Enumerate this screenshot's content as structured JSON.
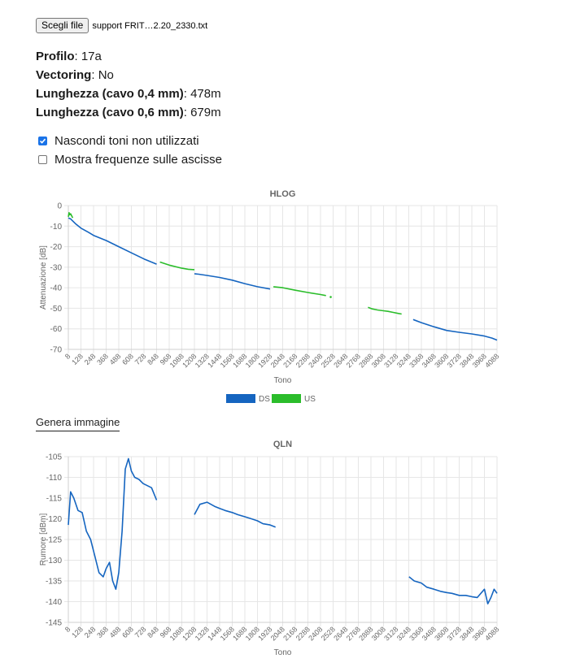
{
  "file_input": {
    "button_label": "Scegli file",
    "file_name": "support FRIT…2.20_2330.txt"
  },
  "info": [
    {
      "label": "Profilo",
      "value": "17a"
    },
    {
      "label": "Vectoring",
      "value": "No"
    },
    {
      "label": "Lunghezza (cavo 0,4 mm)",
      "value": "478m"
    },
    {
      "label": "Lunghezza (cavo 0,6 mm)",
      "value": "679m"
    }
  ],
  "options": [
    {
      "label": "Nascondi toni non utilizzati",
      "checked": true
    },
    {
      "label": "Mostra frequenze sulle ascisse",
      "checked": false
    }
  ],
  "generate_image_label": "Genera immagine",
  "colors": {
    "ds": "#1565c0",
    "us": "#2bbd2b",
    "grid": "#e6e6e6"
  },
  "chart_data": [
    {
      "type": "line",
      "title": "HLOG",
      "xlabel": "Tono",
      "ylabel": "Attenuazione [dB]",
      "ylim": [
        -70,
        0
      ],
      "yticks": [
        0,
        -10,
        -20,
        -30,
        -40,
        -50,
        -60,
        -70
      ],
      "categories": [
        "8",
        "128",
        "248",
        "368",
        "488",
        "608",
        "728",
        "848",
        "968",
        "1088",
        "1208",
        "1328",
        "1448",
        "1568",
        "1688",
        "1808",
        "1928",
        "2048",
        "2168",
        "2288",
        "2408",
        "2528",
        "2648",
        "2768",
        "2888",
        "3008",
        "3128",
        "3248",
        "3368",
        "3488",
        "3608",
        "3728",
        "3848",
        "3968",
        "4088"
      ],
      "legend": {
        "placement": "bottom",
        "entries": [
          "DS",
          "US"
        ]
      },
      "series": [
        {
          "name": "DS",
          "segments": [
            {
              "x": [
                8,
                30,
                80,
                128,
                200,
                248,
                368,
                488,
                608,
                728,
                848
              ],
              "y": [
                -6,
                -6.5,
                -9,
                -11,
                -13,
                -14.5,
                -17,
                -20,
                -23,
                -26,
                -28.5
              ]
            },
            {
              "x": [
                1208,
                1250,
                1328,
                1448,
                1568,
                1688,
                1808,
                1928
              ],
              "y": [
                -33.2,
                -33.4,
                -34,
                -35,
                -36.3,
                -38,
                -39.5,
                -40.6
              ]
            },
            {
              "x": [
                3290,
                3368,
                3488,
                3608,
                3728,
                3848,
                3968,
                4040,
                4088
              ],
              "y": [
                -55.5,
                -57,
                -59,
                -60.8,
                -61.7,
                -62.5,
                -63.5,
                -64.5,
                -65.5
              ]
            }
          ]
        },
        {
          "name": "US",
          "segments": [
            {
              "x": [
                8,
                15,
                22,
                30,
                40,
                50
              ],
              "y": [
                -5.5,
                -3.5,
                -4.5,
                -4,
                -5,
                -6
              ]
            },
            {
              "x": [
                880,
                968,
                1088,
                1150,
                1208
              ],
              "y": [
                -27.5,
                -29,
                -30.5,
                -31,
                -31.2
              ]
            },
            {
              "x": [
                1960,
                2048,
                2168,
                2288,
                2408,
                2460
              ],
              "y": [
                -39.5,
                -40,
                -41.2,
                -42.3,
                -43.3,
                -43.8
              ]
            },
            {
              "x": [
                2505
              ],
              "y": [
                -44.5
              ]
            },
            {
              "x": [
                2860,
                2900,
                2950,
                3008,
                3050,
                3100,
                3150,
                3180
              ],
              "y": [
                -49.5,
                -50.3,
                -50.8,
                -51.2,
                -51.5,
                -52,
                -52.5,
                -52.8
              ]
            }
          ]
        }
      ]
    },
    {
      "type": "line",
      "title": "QLN",
      "xlabel": "Tono",
      "ylabel": "Rumore [dBm]",
      "ylim": [
        -145,
        -105
      ],
      "yticks": [
        -105,
        -110,
        -115,
        -120,
        -125,
        -130,
        -135,
        -140,
        -145
      ],
      "categories": [
        "8",
        "128",
        "248",
        "368",
        "488",
        "608",
        "728",
        "848",
        "968",
        "1088",
        "1208",
        "1328",
        "1448",
        "1568",
        "1688",
        "1808",
        "1928",
        "2048",
        "2168",
        "2288",
        "2408",
        "2528",
        "2648",
        "2768",
        "2888",
        "3008",
        "3128",
        "3248",
        "3368",
        "3488",
        "3608",
        "3728",
        "3848",
        "3968",
        "4088"
      ],
      "series": [
        {
          "name": "DS",
          "segments": [
            {
              "x": [
                8,
                30,
                60,
                100,
                140,
                180,
                220,
                260,
                300,
                340,
                368,
                400,
                430,
                460,
                488,
                520,
                550,
                580,
                608,
                640,
                680,
                720,
                760,
                800,
                848
              ],
              "y": [
                -121.5,
                -113.5,
                -115,
                -118,
                -118.5,
                -123,
                -125,
                -129,
                -133,
                -134,
                -132,
                -130.5,
                -135,
                -137,
                -133,
                -123,
                -108,
                -105.5,
                -108.5,
                -110,
                -110.5,
                -111.5,
                -112,
                -112.5,
                -115.5
              ]
            },
            {
              "x": [
                1208,
                1260,
                1328,
                1400,
                1448,
                1500,
                1568,
                1620,
                1688,
                1750,
                1808,
                1860,
                1928,
                1980
              ],
              "y": [
                -119,
                -116.5,
                -116,
                -117,
                -117.5,
                -118,
                -118.5,
                -119,
                -119.5,
                -120,
                -120.5,
                -121.2,
                -121.5,
                -122
              ]
            },
            {
              "x": [
                3250,
                3300,
                3368,
                3420,
                3488,
                3550,
                3608,
                3660,
                3728,
                3790,
                3848,
                3900,
                3968,
                4000,
                4030,
                4060,
                4088
              ],
              "y": [
                -134,
                -135,
                -135.5,
                -136.5,
                -137,
                -137.5,
                -137.8,
                -138,
                -138.5,
                -138.5,
                -138.8,
                -139,
                -137,
                -140.5,
                -139,
                -137,
                -138
              ]
            }
          ]
        }
      ]
    }
  ]
}
